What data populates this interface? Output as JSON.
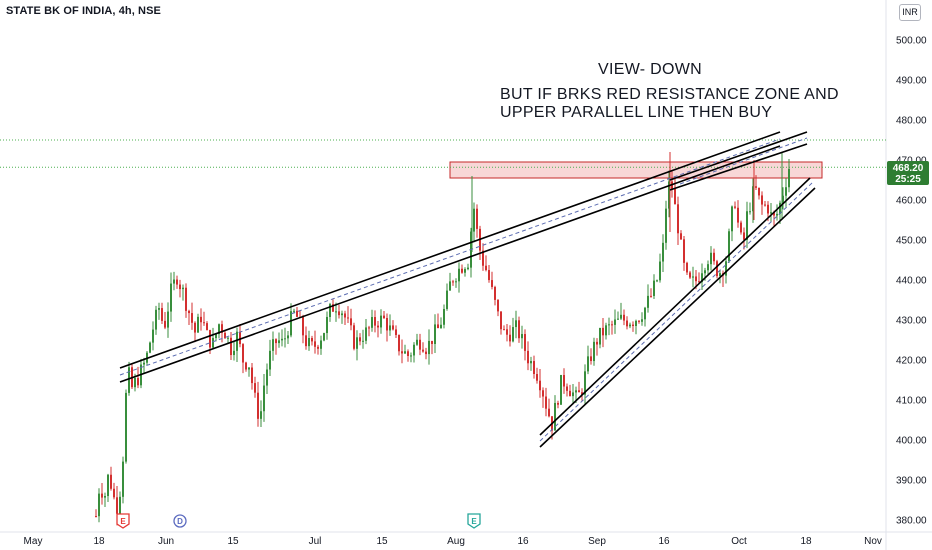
{
  "header": {
    "title": "STATE BK OF INDIA, 4h, NSE",
    "currency": "INR"
  },
  "annotations": {
    "view": "VIEW- DOWN",
    "condition_line1": "BUT IF BRKS RED RESISTANCE ZONE AND",
    "condition_line2": "UPPER PARALLEL LINE THEN BUY"
  },
  "price_label": {
    "price": "468.20",
    "countdown": "25:25"
  },
  "colors": {
    "up": "#26a69a",
    "up_dark": "#388e3c",
    "down": "#ef5350",
    "down_dark": "#d32f2f",
    "resistance_fill": "#f8d7d7",
    "resistance_stroke": "#c62828",
    "price_badge": "#2e7d32",
    "dotted": "#4caf50",
    "dashed_channel": "#5b6cb1"
  },
  "events": [
    {
      "letter": "E",
      "type": "earnings-red"
    },
    {
      "letter": "D",
      "type": "dividend"
    },
    {
      "letter": "E",
      "type": "earnings-green"
    }
  ],
  "chart_data": {
    "type": "candlestick",
    "title": "STATE BK OF INDIA, 4h, NSE",
    "y_unit": "INR",
    "ylim": [
      377,
      508
    ],
    "y_ticks": [
      "380.00",
      "390.00",
      "400.00",
      "410.00",
      "420.00",
      "430.00",
      "440.00",
      "450.00",
      "460.00",
      "470.00",
      "480.00",
      "490.00",
      "500.00"
    ],
    "x_ticks": [
      "May",
      "18",
      "Jun",
      "15",
      "Jul",
      "15",
      "Aug",
      "16",
      "Sep",
      "16",
      "Oct",
      "18",
      "Nov"
    ],
    "last_price": 468.2,
    "dotted_levels": [
      475.0,
      468.2
    ],
    "resistance_zone": {
      "low": 465.5,
      "high": 469.5,
      "from": "Aug 1",
      "to": "Oct 20"
    },
    "grid": false,
    "candles_summary": [
      {
        "date": "May 18",
        "low": 380,
        "high": 393
      },
      {
        "date": "May 24",
        "low": 384,
        "high": 404
      },
      {
        "date": "Jun 1",
        "low": 420,
        "high": 442
      },
      {
        "date": "Jun 15",
        "low": 400,
        "high": 430
      },
      {
        "date": "Jul 1",
        "low": 425,
        "high": 437
      },
      {
        "date": "Aug 1",
        "low": 428,
        "high": 466
      },
      {
        "date": "Aug 22",
        "low": 399,
        "high": 420
      },
      {
        "date": "Sep 16",
        "low": 440,
        "high": 472
      },
      {
        "date": "Oct 1",
        "low": 440,
        "high": 464
      },
      {
        "date": "Oct 10",
        "low": 455,
        "high": 472
      }
    ]
  }
}
